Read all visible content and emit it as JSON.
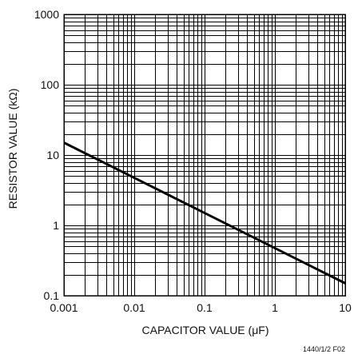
{
  "chart_data": {
    "type": "line",
    "xlabel": "CAPACITOR VALUE (μF)",
    "ylabel": "RESISTOR VALUE (kΩ)",
    "x_scale": "log",
    "y_scale": "log",
    "xlim": [
      0.001,
      10
    ],
    "ylim": [
      0.1,
      1000
    ],
    "x_ticks": [
      "0.001",
      "0.01",
      "0.1",
      "1",
      "10"
    ],
    "y_ticks": [
      "0.1",
      "1",
      "10",
      "100",
      "1000"
    ],
    "grid": "on",
    "series": [
      {
        "x": [
          0.001,
          10
        ],
        "y": [
          15,
          0.15
        ]
      }
    ],
    "figure_id": "1440/1/2 F02"
  }
}
